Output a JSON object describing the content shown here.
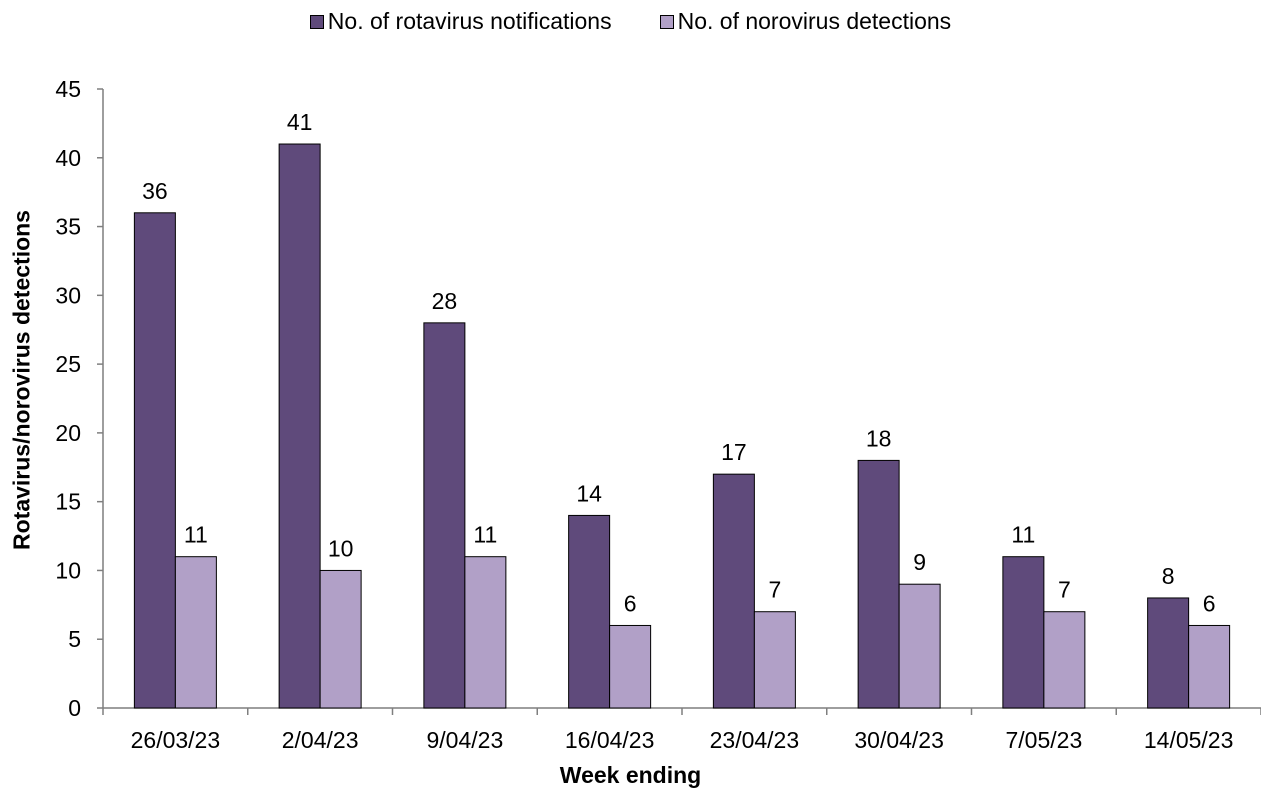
{
  "chart_data": {
    "type": "bar",
    "categories": [
      "26/03/23",
      "2/04/23",
      "9/04/23",
      "16/04/23",
      "23/04/23",
      "30/04/23",
      "7/05/23",
      "14/05/23"
    ],
    "series": [
      {
        "name": "No. of rotavirus notifications",
        "values": [
          36,
          41,
          28,
          14,
          17,
          18,
          11,
          8
        ],
        "color": "#5f4a7b"
      },
      {
        "name": "No. of norovirus detections",
        "values": [
          11,
          10,
          11,
          6,
          7,
          9,
          7,
          6
        ],
        "color": "#b1a0c7"
      }
    ],
    "xlabel": "Week ending",
    "ylabel": "Rotavirus/norovirus  detections",
    "ylim": [
      0,
      45
    ],
    "yticks": [
      0,
      5,
      10,
      15,
      20,
      25,
      30,
      35,
      40,
      45
    ],
    "legend_position": "top-center",
    "grid": false,
    "data_labels": true
  }
}
